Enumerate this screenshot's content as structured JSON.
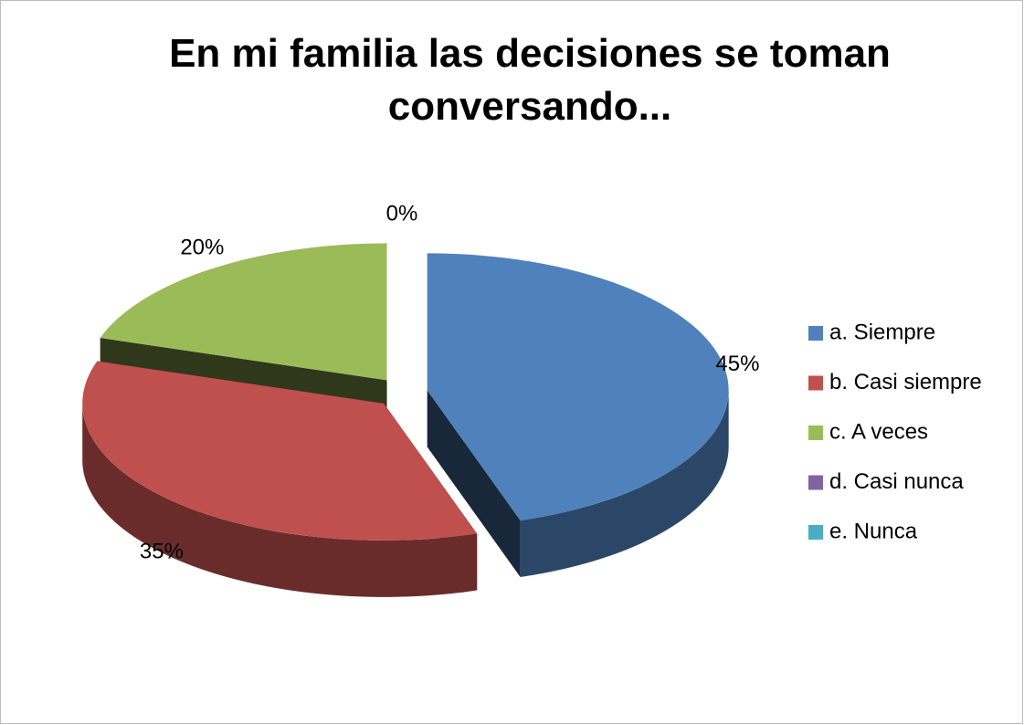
{
  "chart_data": {
    "type": "pie3d",
    "title": "En mi familia las decisiones se toman conversando...",
    "categories": [
      "a. Siempre",
      "b. Casi siempre",
      "c. A veces",
      "d. Casi nunca",
      "e. Nunca"
    ],
    "values": [
      45,
      35,
      20,
      0,
      0
    ],
    "value_labels": [
      "45%",
      "35%",
      "20%",
      "0%",
      null
    ],
    "colors": [
      "#4f81bd",
      "#c0504d",
      "#9bbb59",
      "#8064a2",
      "#4bacc6"
    ],
    "legend": "right"
  }
}
